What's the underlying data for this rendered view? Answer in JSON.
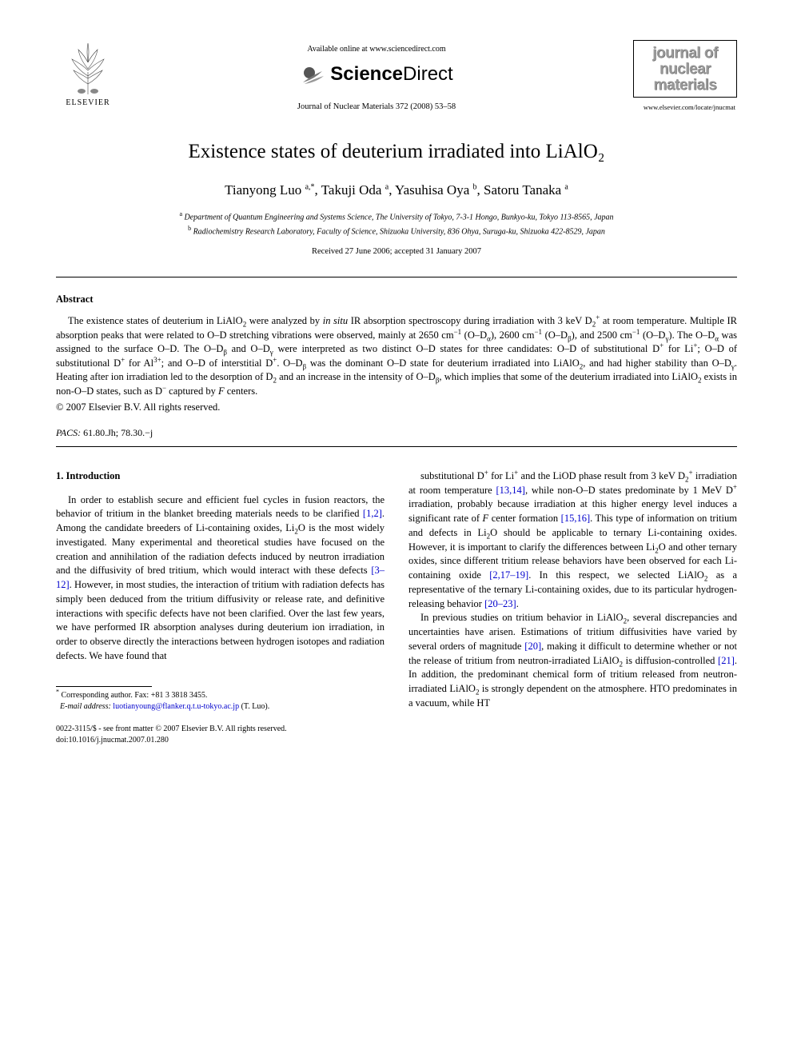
{
  "header": {
    "available_online": "Available online at www.sciencedirect.com",
    "sciencedirect": {
      "part1": "Science",
      "part2": "Direct"
    },
    "journal_citation": "Journal of Nuclear Materials 372 (2008) 53–58",
    "elsevier_label": "ELSEVIER",
    "journal_box": {
      "line1": "journal of",
      "line2": "nuclear",
      "line3": "materials"
    },
    "journal_url": "www.elsevier.com/locate/jnucmat"
  },
  "article": {
    "title": "Existence states of deuterium irradiated into LiAlO₂",
    "authors_html": "Tianyong Luo <sup>a,*</sup>, Takuji Oda <sup>a</sup>, Yasuhisa Oya <sup>b</sup>, Satoru Tanaka <sup>a</sup>",
    "affiliations": {
      "a": "Department of Quantum Engineering and Systems Science, The University of Tokyo, 7-3-1 Hongo, Bunkyo-ku, Tokyo 113-8565, Japan",
      "b": "Radiochemistry Research Laboratory, Faculty of Science, Shizuoka University, 836 Ohya, Suruga-ku, Shizuoka 422-8529, Japan"
    },
    "dates": "Received 27 June 2006; accepted 31 January 2007"
  },
  "abstract": {
    "heading": "Abstract",
    "body_html": "The existence states of deuterium in LiAlO<sub>2</sub> were analyzed by <i>in situ</i> IR absorption spectroscopy during irradiation with 3 keV D<sub>2</sub><sup>+</sup> at room temperature. Multiple IR absorption peaks that were related to O–D stretching vibrations were observed, mainly at 2650 cm<sup>−1</sup> (O–D<sub>α</sub>), 2600 cm<sup>−1</sup> (O–D<sub>β</sub>), and 2500 cm<sup>−1</sup> (O–D<sub>γ</sub>). The O–D<sub>α</sub> was assigned to the surface O–D. The O–D<sub>β</sub> and O–D<sub>γ</sub> were interpreted as two distinct O–D states for three candidates: O–D of substitutional D<sup>+</sup> for Li<sup>+</sup>; O–D of substitutional D<sup>+</sup> for Al<sup>3+</sup>; and O–D of interstitial D<sup>+</sup>. O–D<sub>β</sub> was the dominant O–D state for deuterium irradiated into LiAlO<sub>2</sub>, and had higher stability than O–D<sub>γ</sub>. Heating after ion irradiation led to the desorption of D<sub>2</sub> and an increase in the intensity of O–D<sub>β</sub>, which implies that some of the deuterium irradiated into LiAlO<sub>2</sub> exists in non-O–D states, such as D<sup>−</sup> captured by <i>F</i> centers.",
    "copyright": "© 2007 Elsevier B.V. All rights reserved.",
    "pacs_label": "PACS:",
    "pacs_codes": "61.80.Jh; 78.30.−j"
  },
  "body": {
    "section1_heading": "1. Introduction",
    "col1_p1_html": "In order to establish secure and efficient fuel cycles in fusion reactors, the behavior of tritium in the blanket breeding materials needs to be clarified <span class=\"ref\">[1,2]</span>. Among the candidate breeders of Li-containing oxides, Li<sub>2</sub>O is the most widely investigated. Many experimental and theoretical studies have focused on the creation and annihilation of the radiation defects induced by neutron irradiation and the diffusivity of bred tritium, which would interact with these defects <span class=\"ref\">[3–12]</span>. However, in most studies, the interaction of tritium with radiation defects has simply been deduced from the tritium diffusivity or release rate, and definitive interactions with specific defects have not been clarified. Over the last few years, we have performed IR absorption analyses during deuterium ion irradiation, in order to observe directly the interactions between hydrogen isotopes and radiation defects. We have found that",
    "col2_p1_html": "substitutional D<sup>+</sup> for Li<sup>+</sup> and the LiOD phase result from 3 keV D<sub>2</sub><sup>+</sup> irradiation at room temperature <span class=\"ref\">[13,14]</span>, while non-O–D states predominate by 1 MeV D<sup>+</sup> irradiation, probably because irradiation at this higher energy level induces a significant rate of <i>F</i> center formation <span class=\"ref\">[15,16]</span>. This type of information on tritium and defects in Li<sub>2</sub>O should be applicable to ternary Li-containing oxides. However, it is important to clarify the differences between Li<sub>2</sub>O and other ternary oxides, since different tritium release behaviors have been observed for each Li-containing oxide <span class=\"ref\">[2,17–19]</span>. In this respect, we selected LiAlO<sub>2</sub> as a representative of the ternary Li-containing oxides, due to its particular hydrogen-releasing behavior <span class=\"ref\">[20–23]</span>.",
    "col2_p2_html": "In previous studies on tritium behavior in LiAlO<sub>2</sub>, several discrepancies and uncertainties have arisen. Estimations of tritium diffusivities have varied by several orders of magnitude <span class=\"ref\">[20]</span>, making it difficult to determine whether or not the release of tritium from neutron-irradiated LiAlO<sub>2</sub> is diffusion-controlled <span class=\"ref\">[21]</span>. In addition, the predominant chemical form of tritium released from neutron-irradiated LiAlO<sub>2</sub> is strongly dependent on the atmosphere. HTO predominates in a vacuum, while HT"
  },
  "footer": {
    "corresponding": "Corresponding author. Fax: +81 3 3818 3455.",
    "email_label": "E-mail address:",
    "email_addr": "luotianyoung@flanker.q.t.u-tokyo.ac.jp",
    "email_suffix": "(T. Luo).",
    "front_matter": "0022-3115/$ - see front matter © 2007 Elsevier B.V. All rights reserved.",
    "doi": "doi:10.1016/j.jnucmat.2007.01.280"
  }
}
